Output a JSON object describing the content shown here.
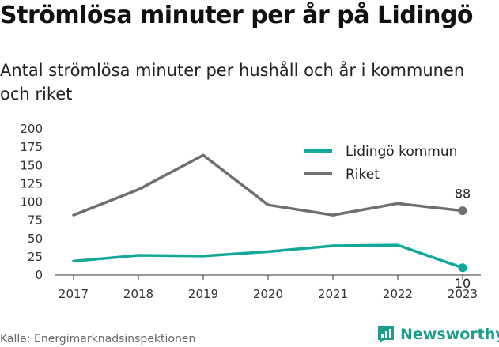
{
  "title": "Strömlösa minuter per år på Lidingö",
  "subtitle": "Antal strömlösa minuter per hushåll och år i kommunen och riket",
  "source": "Källa: Energimarknadsinspektionen",
  "brand": "Newsworthy",
  "colors": {
    "brand": "#1e9d8b",
    "lidingo": "#13a899",
    "riket": "#6f6f6f",
    "axis": "#333333"
  },
  "chart_data": {
    "type": "line",
    "x": [
      "2017",
      "2018",
      "2019",
      "2020",
      "2021",
      "2022",
      "2023"
    ],
    "ylim": [
      0,
      200
    ],
    "yticks": [
      "0",
      "25",
      "50",
      "75",
      "100",
      "125",
      "150",
      "175",
      "200"
    ],
    "grid": false,
    "legend_position": "top-right",
    "series": [
      {
        "name": "Lidingö kommun",
        "color": "#13a899",
        "values": [
          19,
          27,
          26,
          32,
          40,
          41,
          10
        ],
        "end_label": "10"
      },
      {
        "name": "Riket",
        "color": "#6f6f6f",
        "values": [
          82,
          117,
          164,
          96,
          82,
          98,
          88
        ],
        "end_label": "88"
      }
    ]
  }
}
